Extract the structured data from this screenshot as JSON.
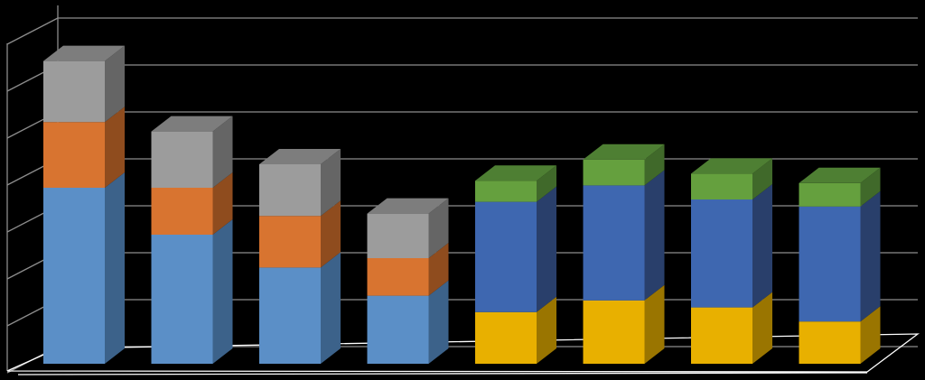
{
  "chart_data": {
    "type": "bar",
    "stacked": true,
    "three_d": true,
    "title": "",
    "xlabel": "",
    "ylabel": "",
    "ylim": [
      0,
      7.5
    ],
    "grid": true,
    "legend": "none",
    "categories": [
      "",
      "",
      "",
      "",
      "",
      "",
      "",
      ""
    ],
    "series": [
      {
        "values": [
          3.75,
          2.75,
          2.05,
          1.45,
          0,
          0,
          0,
          0
        ],
        "color": "#5b8fc7",
        "side_color": "#3c628a",
        "top_color": "#6d9fd3"
      },
      {
        "values": [
          1.4,
          1.0,
          1.1,
          0.8,
          0,
          0,
          0,
          0
        ],
        "color": "#d87430",
        "side_color": "#8f4c1e",
        "top_color": "#e0874a"
      },
      {
        "values": [
          1.3,
          1.2,
          1.1,
          0.95,
          0,
          0,
          0,
          0
        ],
        "color": "#9c9c9c",
        "side_color": "#656565",
        "top_color": "#7d7d7d"
      },
      {
        "values": [
          0,
          0,
          0,
          0,
          1.1,
          1.35,
          1.2,
          0.9
        ],
        "color": "#e8b000",
        "side_color": "#9a7500",
        "top_color": "#f0c030"
      },
      {
        "values": [
          0,
          0,
          0,
          0,
          2.35,
          2.45,
          2.3,
          2.45
        ],
        "color": "#3e67b0",
        "side_color": "#293f6b",
        "top_color": "#4f78c0"
      },
      {
        "values": [
          0,
          0,
          0,
          0,
          0.45,
          0.55,
          0.55,
          0.5
        ],
        "color": "#65a03e",
        "side_color": "#40692a",
        "top_color": "#4e7f33"
      }
    ],
    "colors": {
      "background": "#000000",
      "gridline": "#8c8c8c",
      "floor": "#ffffff"
    }
  }
}
